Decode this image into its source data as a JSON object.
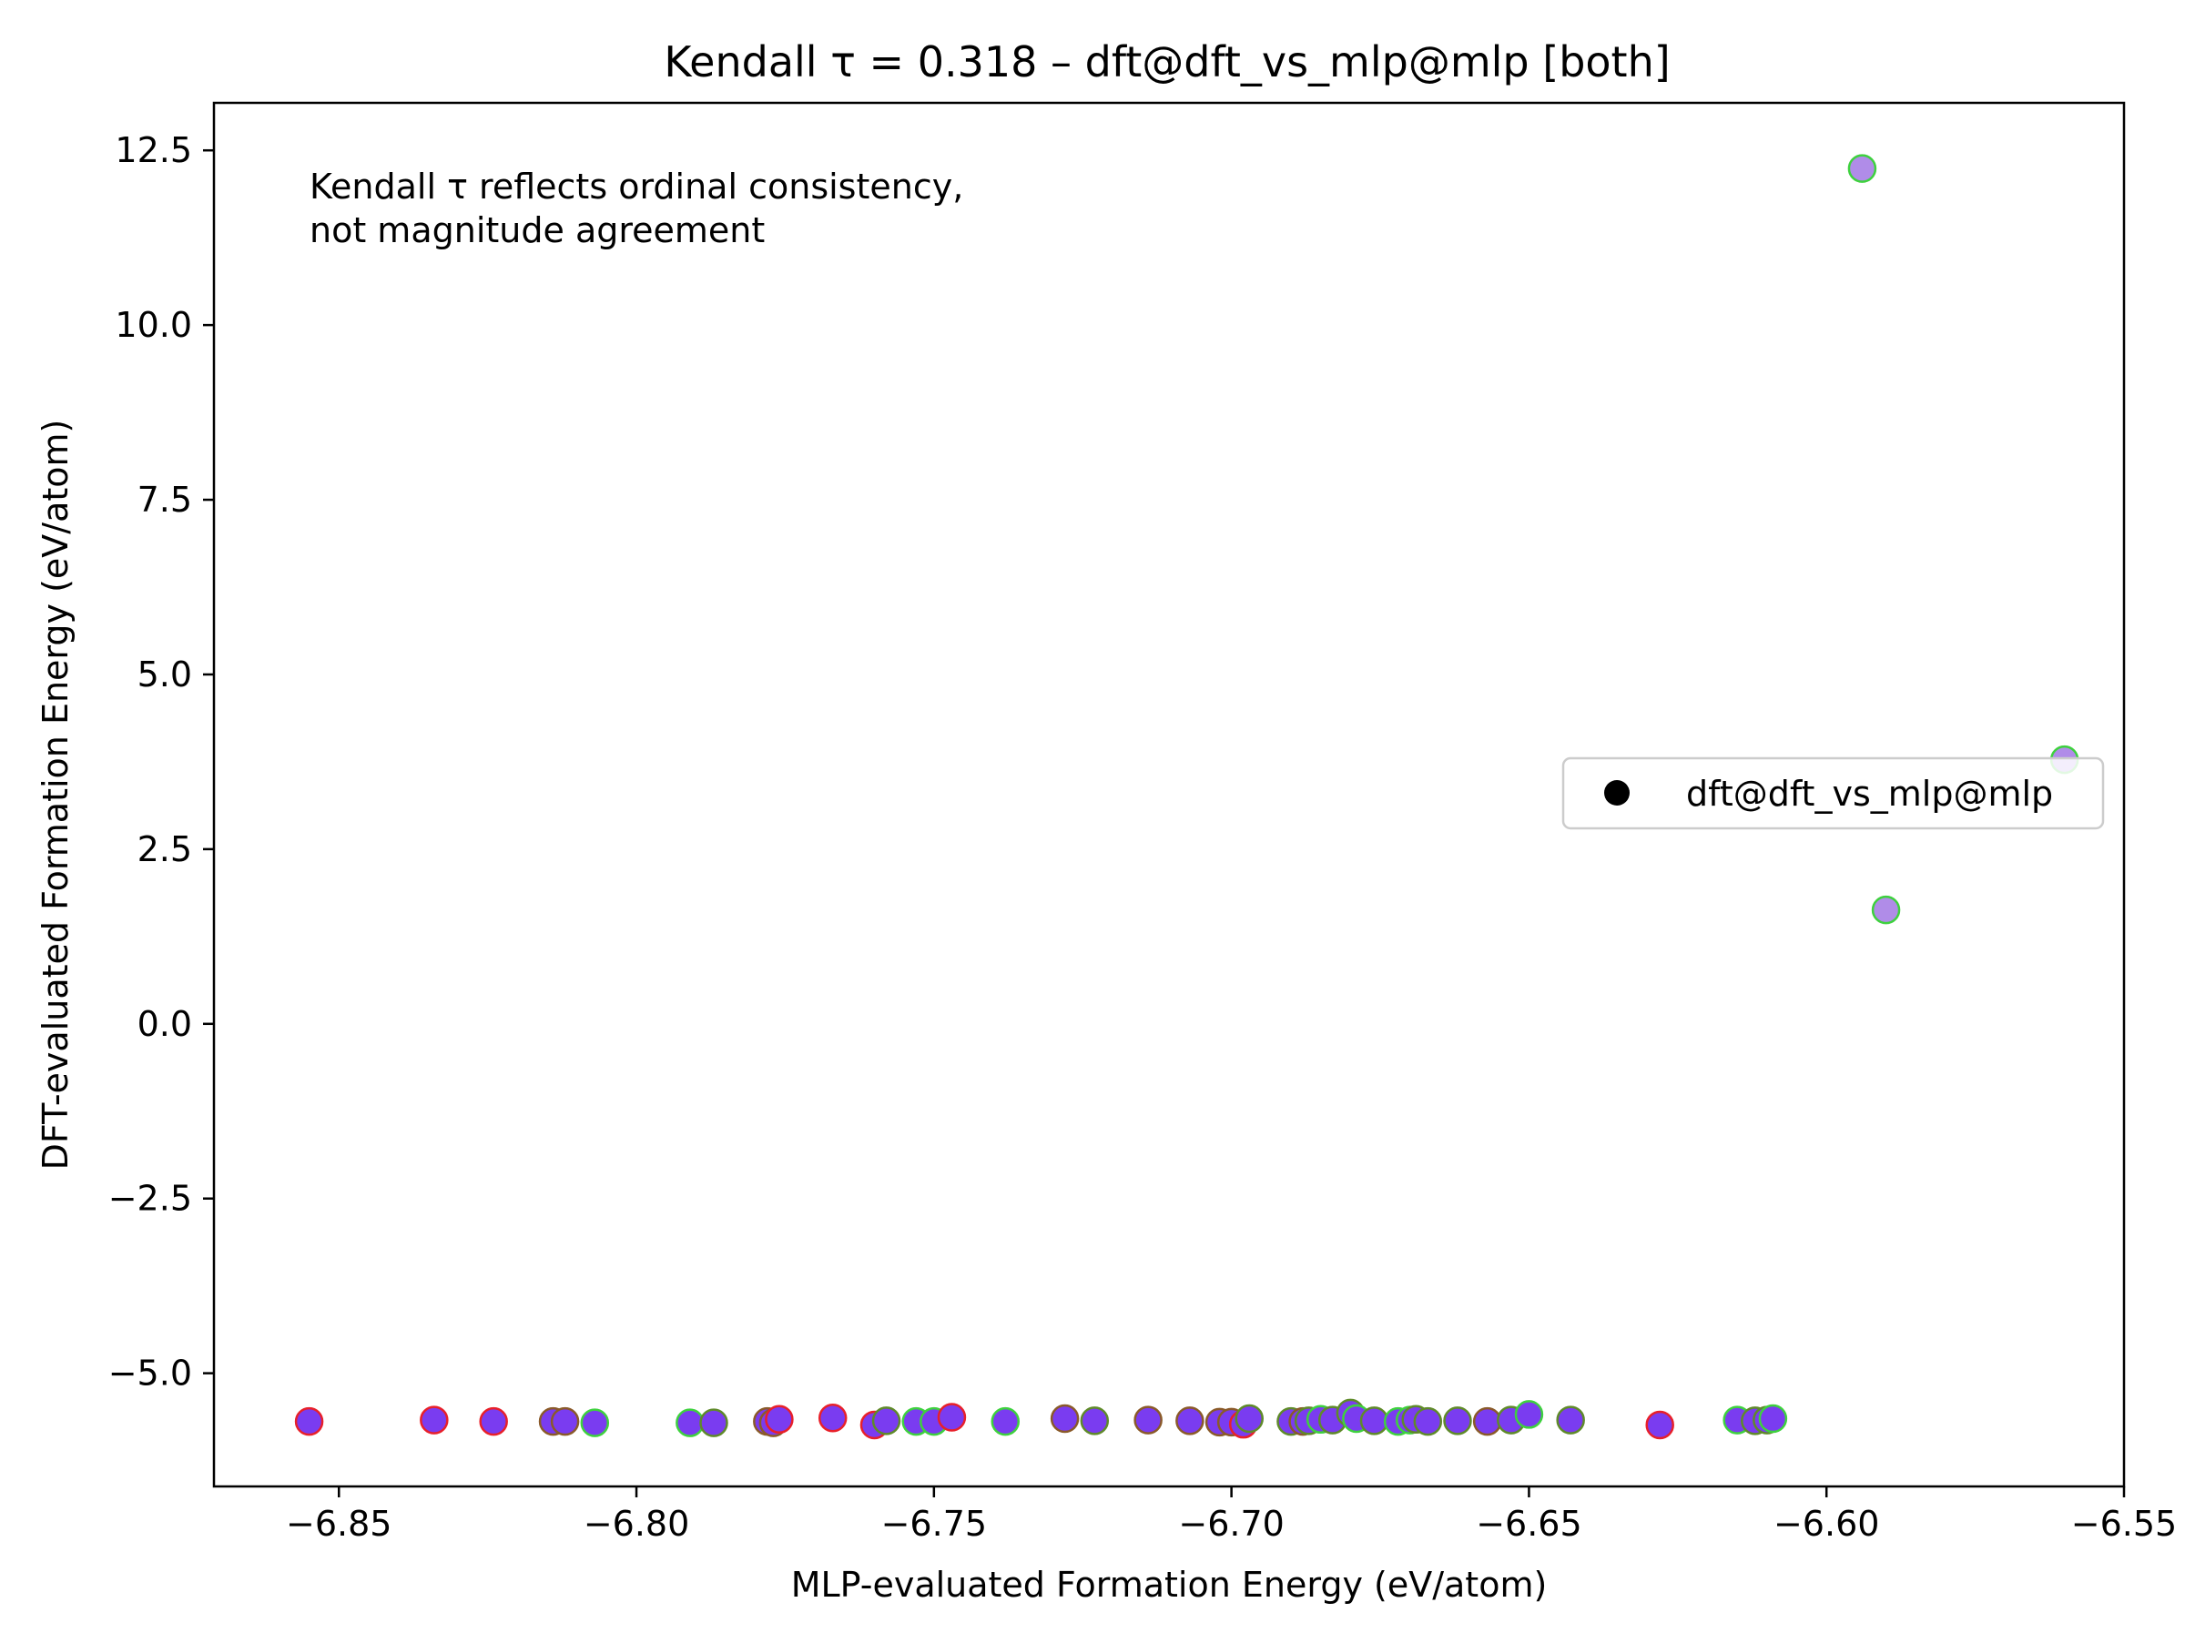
{
  "chart_data": {
    "type": "scatter",
    "title": "Kendall τ = 0.318 – dft@dft_vs_mlp@mlp [both]",
    "xlabel": "MLP-evaluated Formation Energy (eV/atom)",
    "ylabel": "DFT-evaluated Formation Energy (eV/atom)",
    "xlim": [
      -6.871,
      -6.55
    ],
    "ylim": [
      -6.62,
      13.18
    ],
    "xticks": [
      -6.85,
      -6.8,
      -6.75,
      -6.7,
      -6.65,
      -6.6,
      -6.55
    ],
    "xtick_labels": [
      "−6.85",
      "−6.80",
      "−6.75",
      "−6.70",
      "−6.65",
      "−6.60",
      "−6.55"
    ],
    "yticks": [
      -5.0,
      -2.5,
      0.0,
      2.5,
      5.0,
      7.5,
      10.0,
      12.5
    ],
    "ytick_labels": [
      "−5.0",
      "−2.5",
      "0.0",
      "2.5",
      "5.0",
      "7.5",
      "10.0",
      "12.5"
    ],
    "grid": false,
    "annotation": {
      "lines": [
        "Kendall τ reflects ordinal consistency,",
        "not magnitude agreement"
      ]
    },
    "legend": {
      "placement": "center-right",
      "entries": [
        {
          "label": "dft@dft_vs_mlp@mlp",
          "color": "#000000"
        }
      ]
    },
    "colors": {
      "fill": "#7a3cf0",
      "fill_outlier": "#b08ce8",
      "edge_red": "#e8202a",
      "edge_green": "#3ed13e",
      "edge_brown": "#8a5a2a",
      "edge_olive": "#5f8a2a"
    },
    "series": [
      {
        "name": "dft@dft_vs_mlp@mlp",
        "points": [
          {
            "x": -6.855,
            "y": -5.69,
            "edge": "red"
          },
          {
            "x": -6.834,
            "y": -5.67,
            "edge": "red"
          },
          {
            "x": -6.824,
            "y": -5.69,
            "edge": "red"
          },
          {
            "x": -6.814,
            "y": -5.69,
            "edge": "brown"
          },
          {
            "x": -6.812,
            "y": -5.69,
            "edge": "brown"
          },
          {
            "x": -6.807,
            "y": -5.71,
            "edge": "green"
          },
          {
            "x": -6.791,
            "y": -5.71,
            "edge": "green"
          },
          {
            "x": -6.787,
            "y": -5.71,
            "edge": "olive"
          },
          {
            "x": -6.778,
            "y": -5.69,
            "edge": "brown"
          },
          {
            "x": -6.777,
            "y": -5.71,
            "edge": "brown"
          },
          {
            "x": -6.776,
            "y": -5.66,
            "edge": "red"
          },
          {
            "x": -6.767,
            "y": -5.64,
            "edge": "red"
          },
          {
            "x": -6.76,
            "y": -5.74,
            "edge": "red"
          },
          {
            "x": -6.758,
            "y": -5.68,
            "edge": "olive"
          },
          {
            "x": -6.753,
            "y": -5.69,
            "edge": "green"
          },
          {
            "x": -6.75,
            "y": -5.69,
            "edge": "green"
          },
          {
            "x": -6.747,
            "y": -5.63,
            "edge": "red"
          },
          {
            "x": -6.738,
            "y": -5.69,
            "edge": "green"
          },
          {
            "x": -6.728,
            "y": -5.65,
            "edge": "brown"
          },
          {
            "x": -6.723,
            "y": -5.68,
            "edge": "olive"
          },
          {
            "x": -6.714,
            "y": -5.67,
            "edge": "brown"
          },
          {
            "x": -6.707,
            "y": -5.68,
            "edge": "brown"
          },
          {
            "x": -6.702,
            "y": -5.7,
            "edge": "brown"
          },
          {
            "x": -6.7,
            "y": -5.7,
            "edge": "brown"
          },
          {
            "x": -6.698,
            "y": -5.73,
            "edge": "red"
          },
          {
            "x": -6.697,
            "y": -5.65,
            "edge": "olive"
          },
          {
            "x": -6.69,
            "y": -5.69,
            "edge": "olive"
          },
          {
            "x": -6.688,
            "y": -5.69,
            "edge": "brown"
          },
          {
            "x": -6.687,
            "y": -5.68,
            "edge": "olive"
          },
          {
            "x": -6.685,
            "y": -5.66,
            "edge": "green"
          },
          {
            "x": -6.683,
            "y": -5.67,
            "edge": "olive"
          },
          {
            "x": -6.68,
            "y": -5.57,
            "edge": "olive"
          },
          {
            "x": -6.679,
            "y": -5.65,
            "edge": "green"
          },
          {
            "x": -6.676,
            "y": -5.68,
            "edge": "olive"
          },
          {
            "x": -6.672,
            "y": -5.69,
            "edge": "green"
          },
          {
            "x": -6.67,
            "y": -5.67,
            "edge": "green"
          },
          {
            "x": -6.669,
            "y": -5.66,
            "edge": "olive"
          },
          {
            "x": -6.667,
            "y": -5.69,
            "edge": "olive"
          },
          {
            "x": -6.662,
            "y": -5.68,
            "edge": "olive"
          },
          {
            "x": -6.657,
            "y": -5.69,
            "edge": "brown"
          },
          {
            "x": -6.653,
            "y": -5.67,
            "edge": "olive"
          },
          {
            "x": -6.65,
            "y": -5.59,
            "edge": "green"
          },
          {
            "x": -6.643,
            "y": -5.67,
            "edge": "olive"
          },
          {
            "x": -6.628,
            "y": -5.74,
            "edge": "red"
          },
          {
            "x": -6.615,
            "y": -5.67,
            "edge": "green"
          },
          {
            "x": -6.612,
            "y": -5.68,
            "edge": "olive"
          },
          {
            "x": -6.61,
            "y": -5.67,
            "edge": "olive"
          },
          {
            "x": -6.609,
            "y": -5.65,
            "edge": "green"
          },
          {
            "x": -6.594,
            "y": 12.24,
            "edge": "green",
            "outlier": true
          },
          {
            "x": -6.59,
            "y": 1.63,
            "edge": "green",
            "outlier": true
          },
          {
            "x": -6.56,
            "y": 3.78,
            "edge": "green",
            "outlier": true
          }
        ]
      }
    ]
  }
}
